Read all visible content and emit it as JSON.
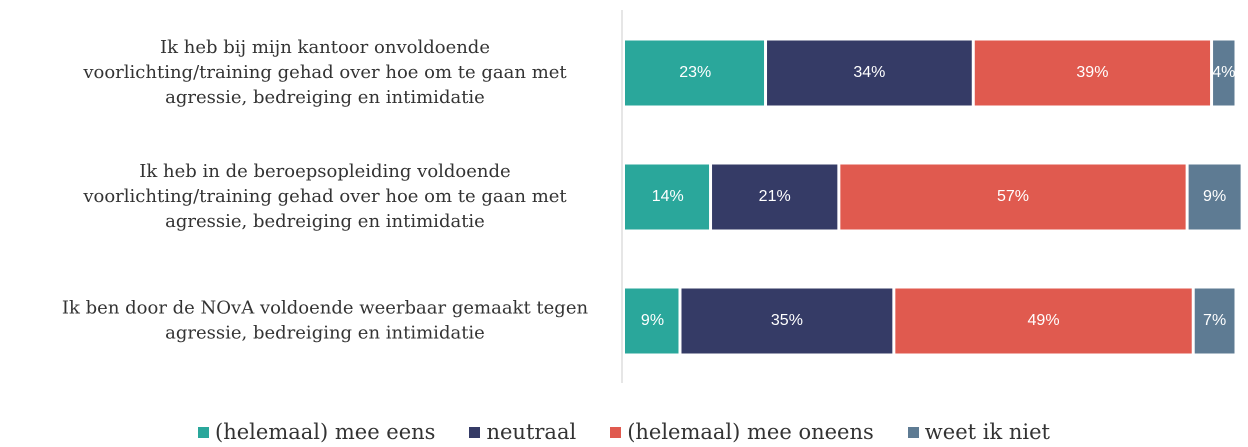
{
  "chart_data": {
    "type": "stacked-bar-horizontal",
    "categories": [
      [
        "Ik heb bij mijn kantoor onvoldoende",
        "voorlichting/training gehad over hoe om te gaan met",
        "agressie, bedreiging en intimidatie"
      ],
      [
        "Ik heb in de beroepsopleiding voldoende",
        "voorlichting/training gehad over hoe om te gaan met",
        "agressie, bedreiging en intimidatie"
      ],
      [
        "Ik ben door de NOvA voldoende weerbaar gemaakt tegen",
        "agressie, bedreiging en intimidatie"
      ]
    ],
    "series": [
      {
        "name": "(helemaal) mee eens",
        "color": "#2aa79b",
        "values": [
          23,
          14,
          9
        ],
        "value_labels": [
          "23%",
          "14%",
          "9%"
        ]
      },
      {
        "name": "neutraal",
        "color": "#353b66",
        "values": [
          34,
          21,
          35
        ],
        "value_labels": [
          "34%",
          "21%",
          "35%"
        ]
      },
      {
        "name": "(helemaal) mee oneens",
        "color": "#e05a4f",
        "values": [
          39,
          57,
          49
        ],
        "value_labels": [
          "39%",
          "57%",
          "49%"
        ]
      },
      {
        "name": "weet ik niet",
        "color": "#5e7b93",
        "values": [
          4,
          9,
          7
        ],
        "value_labels": [
          "4%",
          "9%",
          "7%"
        ]
      }
    ],
    "xlim": [
      0,
      100
    ]
  }
}
